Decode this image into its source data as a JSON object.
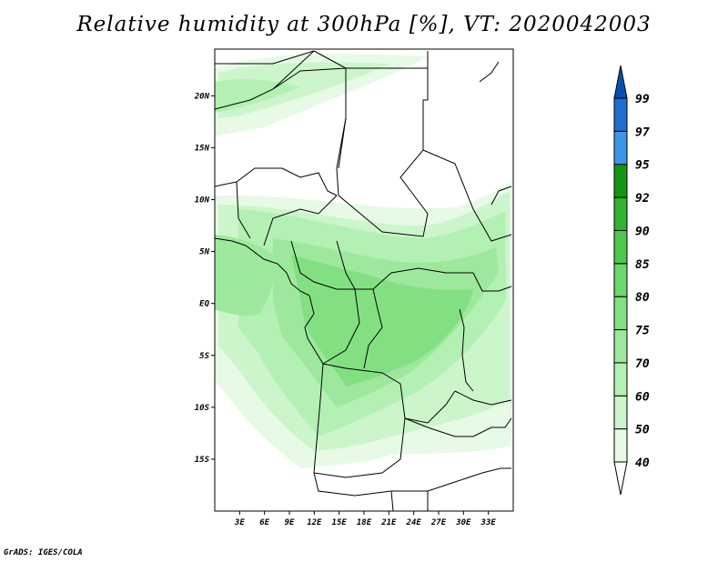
{
  "title": "Relative humidity at 300hPa [%], VT: 2020042003",
  "credit": "GrADS: IGES/COLA",
  "map": {
    "lon_range": [
      0,
      36
    ],
    "lat_range": [
      -20,
      24.5
    ],
    "lat_ticks": [
      {
        "value": 20,
        "label": "20N"
      },
      {
        "value": 15,
        "label": "15N"
      },
      {
        "value": 10,
        "label": "10N"
      },
      {
        "value": 5,
        "label": "5N"
      },
      {
        "value": 0,
        "label": "EQ"
      },
      {
        "value": -5,
        "label": "5S"
      },
      {
        "value": -10,
        "label": "10S"
      },
      {
        "value": -15,
        "label": "15S"
      }
    ],
    "lon_ticks": [
      {
        "value": 3,
        "label": "3E"
      },
      {
        "value": 6,
        "label": "6E"
      },
      {
        "value": 9,
        "label": "9E"
      },
      {
        "value": 12,
        "label": "12E"
      },
      {
        "value": 15,
        "label": "15E"
      },
      {
        "value": 18,
        "label": "18E"
      },
      {
        "value": 21,
        "label": "21E"
      },
      {
        "value": 24,
        "label": "24E"
      },
      {
        "value": 27,
        "label": "27E"
      },
      {
        "value": 30,
        "label": "30E"
      },
      {
        "value": 33,
        "label": "33E"
      }
    ]
  },
  "colorbar": {
    "levels": [
      "40",
      "50",
      "60",
      "70",
      "75",
      "80",
      "85",
      "90",
      "92",
      "95",
      "97",
      "99"
    ],
    "colors": [
      "#ffffff",
      "#e6fae6",
      "#ccf5cc",
      "#b3f0b3",
      "#9de89d",
      "#82e082",
      "#6cd86c",
      "#4cc84c",
      "#30b430",
      "#149614",
      "#3c96e6",
      "#1e6ed2",
      "#0a50b4"
    ]
  }
}
